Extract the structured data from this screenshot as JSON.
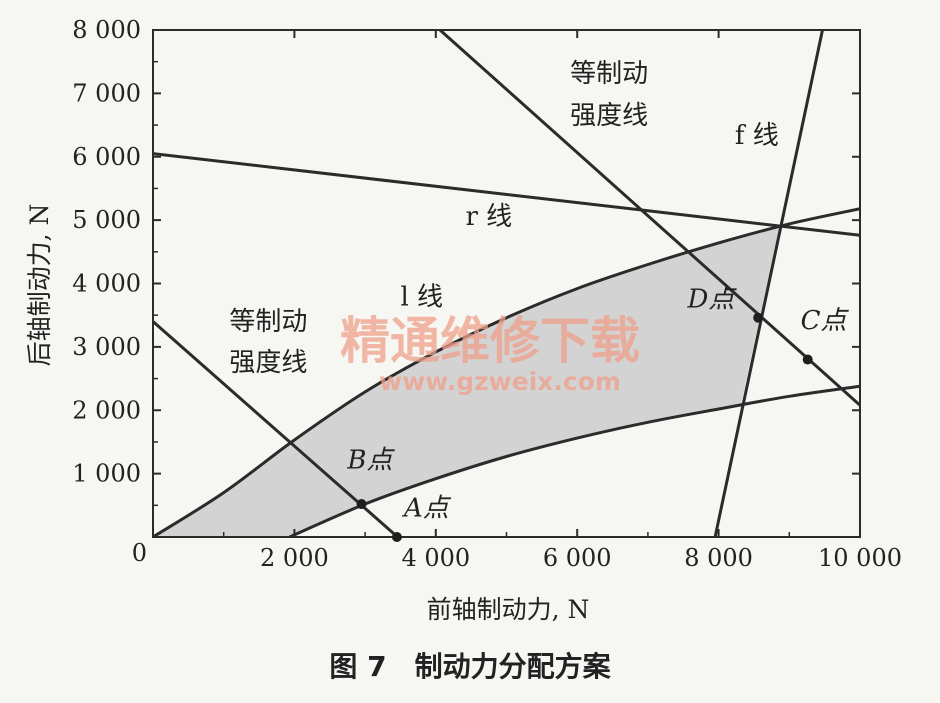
{
  "chart_data": {
    "type": "line",
    "xlabel": "前轴制动力, N",
    "ylabel": "后轴制动力, N",
    "xlim": [
      0,
      10000
    ],
    "ylim": [
      0,
      8000
    ],
    "x_ticks": [
      {
        "value": 0,
        "label": "0"
      },
      {
        "value": 2000,
        "label": "2 000"
      },
      {
        "value": 4000,
        "label": "4 000"
      },
      {
        "value": 6000,
        "label": "6 000"
      },
      {
        "value": 8000,
        "label": "8 000"
      },
      {
        "value": 10000,
        "label": "10 000"
      }
    ],
    "y_ticks": [
      {
        "value": 1000,
        "label": "1 000"
      },
      {
        "value": 2000,
        "label": "2 000"
      },
      {
        "value": 3000,
        "label": "3 000"
      },
      {
        "value": 4000,
        "label": "4 000"
      },
      {
        "value": 5000,
        "label": "5 000"
      },
      {
        "value": 6000,
        "label": "6 000"
      },
      {
        "value": 7000,
        "label": "7 000"
      },
      {
        "value": 8000,
        "label": "8 000"
      }
    ],
    "series": [
      {
        "name": "l 线",
        "kind": "curve",
        "points": [
          [
            0,
            0
          ],
          [
            1000,
            700
          ],
          [
            2000,
            1530
          ],
          [
            3000,
            2290
          ],
          [
            4000,
            2920
          ],
          [
            5000,
            3460
          ],
          [
            6000,
            3920
          ],
          [
            7000,
            4300
          ],
          [
            8000,
            4640
          ],
          [
            9000,
            4940
          ],
          [
            10000,
            5180
          ]
        ]
      },
      {
        "name": "r 线",
        "kind": "line",
        "points": [
          [
            0,
            6050
          ],
          [
            10000,
            4760
          ]
        ]
      },
      {
        "name": "f 线",
        "kind": "line",
        "points": [
          [
            7950,
            0
          ],
          [
            9470,
            8000
          ]
        ]
      },
      {
        "name": "lower-curve",
        "kind": "curve",
        "points": [
          [
            1930,
            0
          ],
          [
            3000,
            520
          ],
          [
            4000,
            920
          ],
          [
            5000,
            1270
          ],
          [
            6000,
            1560
          ],
          [
            7000,
            1810
          ],
          [
            8000,
            2020
          ],
          [
            9000,
            2220
          ],
          [
            10000,
            2380
          ]
        ]
      },
      {
        "name": "等制动强度线-upper",
        "kind": "line",
        "points": [
          [
            4060,
            8000
          ],
          [
            10000,
            2080
          ]
        ]
      },
      {
        "name": "等制动强度线-lower",
        "kind": "line",
        "points": [
          [
            0,
            3400
          ],
          [
            3460,
            0
          ]
        ]
      }
    ],
    "shaded_region": {
      "upper": [
        [
          0,
          0
        ],
        [
          1000,
          700
        ],
        [
          2000,
          1530
        ],
        [
          3000,
          2290
        ],
        [
          4000,
          2920
        ],
        [
          5000,
          3460
        ],
        [
          6000,
          3920
        ],
        [
          7000,
          4300
        ],
        [
          8000,
          4640
        ],
        [
          8860,
          4900
        ]
      ],
      "right": [
        [
          8860,
          4900
        ],
        [
          8300,
          2000
        ]
      ],
      "lower": [
        [
          8300,
          2060
        ],
        [
          8000,
          2020
        ],
        [
          7000,
          1810
        ],
        [
          6000,
          1560
        ],
        [
          5000,
          1270
        ],
        [
          4000,
          920
        ],
        [
          3000,
          520
        ],
        [
          1930,
          0
        ]
      ],
      "color": "#d3d3d3"
    },
    "points": [
      {
        "label": "A点",
        "x": 3450,
        "y": 0,
        "label_dx": 0.01,
        "label_dy": 0.04
      },
      {
        "label": "B点",
        "x": 2950,
        "y": 520,
        "label_dx": -0.02,
        "label_dy": 0.07
      },
      {
        "label": "C点",
        "x": 9260,
        "y": 2800,
        "label_dx": -0.01,
        "label_dy": 0.06
      },
      {
        "label": "D点",
        "x": 8560,
        "y": 3460,
        "label_dx": -0.1,
        "label_dy": 0.02
      }
    ],
    "annotations": [
      {
        "text": "等制动",
        "x": 5900,
        "y": 7180
      },
      {
        "text": "强度线",
        "x": 5900,
        "y": 6520
      },
      {
        "text": "f 线",
        "x": 8230,
        "y": 6200
      },
      {
        "text": "r 线",
        "x": 4420,
        "y": 4920
      },
      {
        "text": "l 线",
        "x": 3500,
        "y": 3650
      },
      {
        "text": "等制动",
        "x": 1080,
        "y": 3270
      },
      {
        "text": "强度线",
        "x": 1080,
        "y": 2620
      }
    ],
    "grid": false,
    "line_color": "#2b2b2b",
    "title": ""
  },
  "caption": "图 7　制动力分配方案",
  "watermark": {
    "text": "精通维修下载",
    "url": "www.gzweix.com",
    "color": "#f0a08a"
  }
}
